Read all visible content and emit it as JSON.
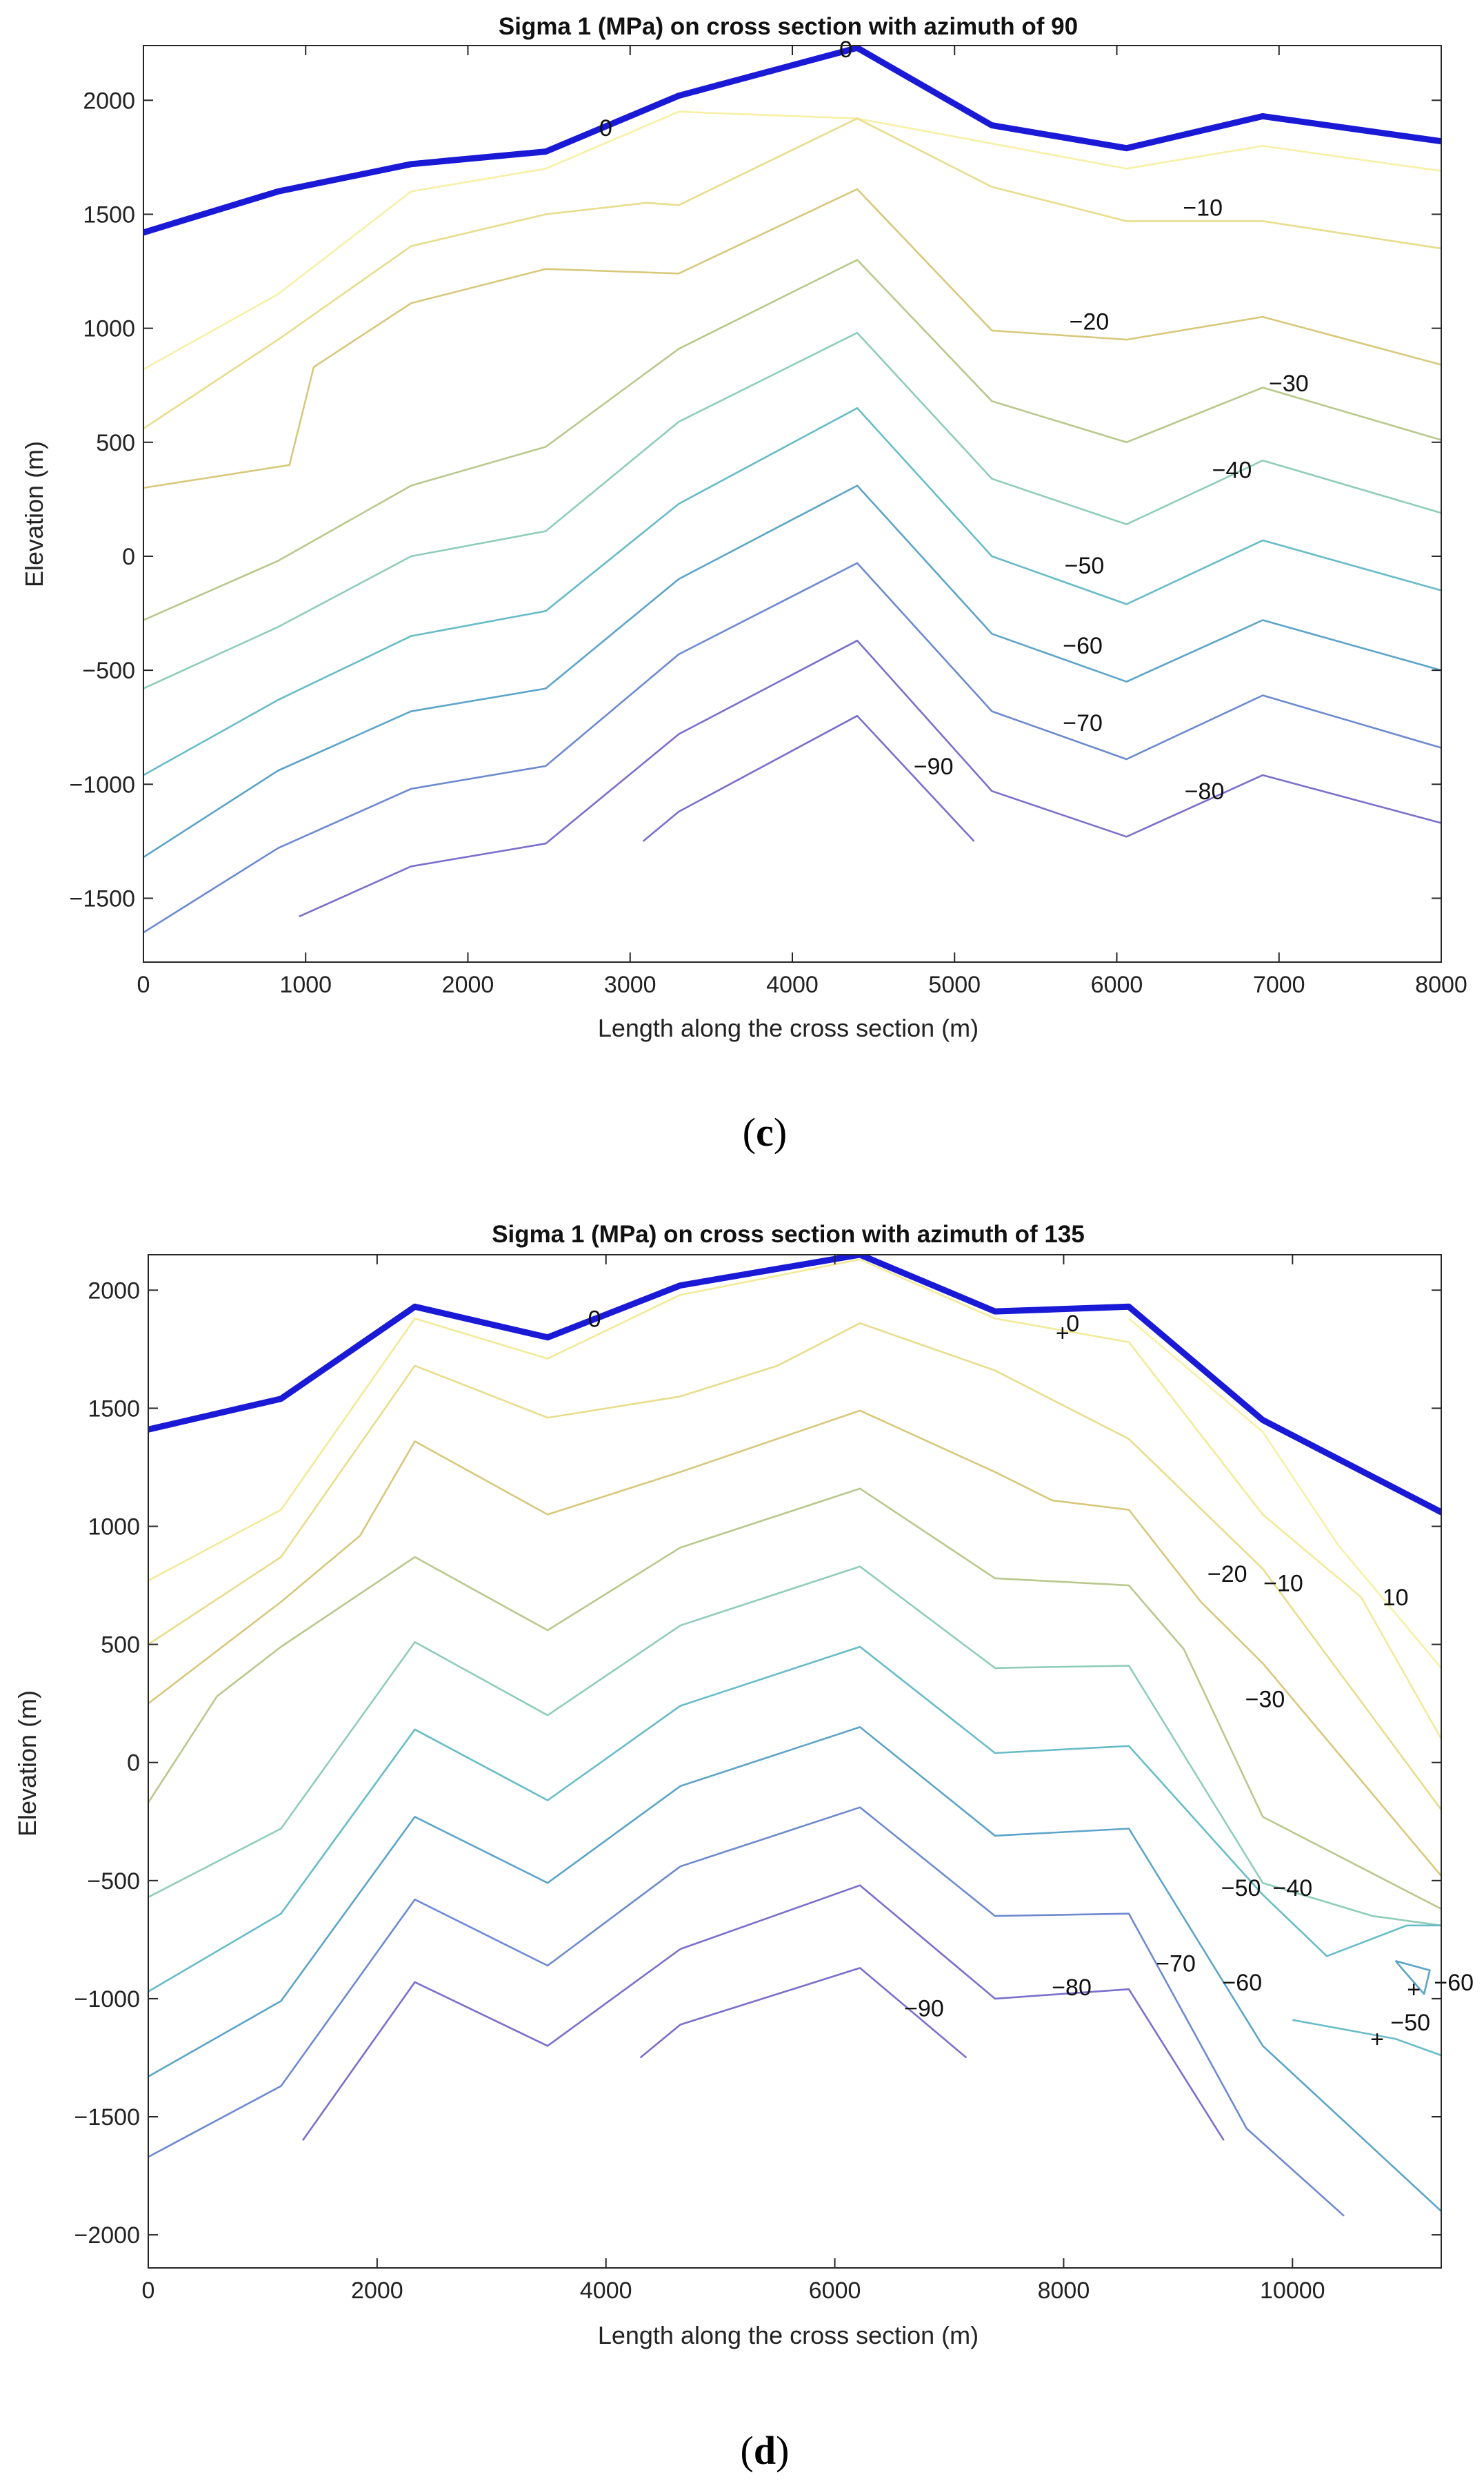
{
  "chart_data": [
    {
      "type": "contour",
      "panel": "c",
      "caption": "(c)",
      "caption_inner": "c",
      "title": "Sigma 1 (MPa) on cross section with azimuth of 90",
      "xlabel": "Length along the cross section (m)",
      "ylabel": "Elevation (m)",
      "xlim": [
        0,
        8000
      ],
      "ylim": [
        -1780,
        2240
      ],
      "xticks": [
        0,
        1000,
        2000,
        3000,
        4000,
        5000,
        6000,
        7000,
        8000
      ],
      "yticks": [
        -1500,
        -1000,
        -500,
        0,
        500,
        1000,
        1500,
        2000
      ],
      "surface": {
        "name": "Topographic surface",
        "color": "#1a1ad6",
        "x": [
          0,
          830,
          1650,
          2480,
          3300,
          4400,
          5230,
          6060,
          6900,
          8000
        ],
        "y": [
          1420,
          1600,
          1720,
          1775,
          2020,
          2230,
          1890,
          1790,
          1930,
          1820
        ]
      },
      "contours": [
        {
          "level": -10,
          "label": "−10",
          "color": "#f7f0a6",
          "x": [
            0,
            830,
            1650,
            2480,
            3300,
            4400,
            5230,
            6060,
            6900,
            8000
          ],
          "y": [
            820,
            1150,
            1600,
            1700,
            1950,
            1920,
            1810,
            1700,
            1800,
            1690
          ]
        },
        {
          "level": -20,
          "label": "−20",
          "color": "#e8dd8c",
          "x": [
            0,
            830,
            1650,
            2480,
            3100,
            3300,
            4400,
            5230,
            6060,
            6900,
            8000
          ],
          "y": [
            560,
            950,
            1360,
            1500,
            1550,
            1540,
            1920,
            1620,
            1470,
            1470,
            1350
          ]
        },
        {
          "level": -30,
          "label": "−30",
          "color": "#d8c87c",
          "x": [
            0,
            900,
            1050,
            1650,
            2480,
            3300,
            4400,
            5230,
            6060,
            6900,
            8000
          ],
          "y": [
            300,
            400,
            830,
            1110,
            1260,
            1240,
            1610,
            990,
            950,
            1050,
            840
          ]
        },
        {
          "level": -40,
          "label": "−40",
          "color": "#b9c88c",
          "x": [
            0,
            830,
            1650,
            2480,
            3300,
            4400,
            5230,
            6060,
            6900,
            8000
          ],
          "y": [
            -280,
            -20,
            310,
            480,
            910,
            1300,
            680,
            500,
            740,
            510
          ]
        },
        {
          "level": -50,
          "label": "−50",
          "color": "#8fcdb9",
          "x": [
            0,
            830,
            1650,
            2480,
            3300,
            4400,
            5230,
            6060,
            6900,
            8000
          ],
          "y": [
            -580,
            -310,
            0,
            110,
            590,
            980,
            340,
            140,
            420,
            190
          ]
        },
        {
          "level": -60,
          "label": "−60",
          "color": "#68bcc8",
          "x": [
            0,
            830,
            1650,
            2480,
            3300,
            4400,
            5230,
            6060,
            6900,
            8000
          ],
          "y": [
            -960,
            -630,
            -350,
            -240,
            230,
            650,
            0,
            -210,
            70,
            -150
          ]
        },
        {
          "level": -70,
          "label": "−70",
          "color": "#5ca4c9",
          "x": [
            0,
            830,
            1650,
            2480,
            3300,
            4400,
            5230,
            6060,
            6900,
            8000
          ],
          "y": [
            -1320,
            -940,
            -680,
            -580,
            -100,
            310,
            -340,
            -550,
            -280,
            -500
          ]
        },
        {
          "level": -80,
          "label": "−80",
          "color": "#6d8ad0",
          "x": [
            0,
            830,
            1650,
            2480,
            3300,
            4400,
            5230,
            6060,
            6900,
            8000
          ],
          "y": [
            -1650,
            -1280,
            -1020,
            -920,
            -430,
            -30,
            -680,
            -890,
            -610,
            -840
          ]
        },
        {
          "level": -90,
          "label": "−90",
          "color": "#7a6fcc",
          "x": [
            960,
            1650,
            2480,
            3300,
            4400,
            5230,
            6060,
            6900,
            8000
          ],
          "y": [
            -1580,
            -1360,
            -1260,
            -780,
            -370,
            -1030,
            -1230,
            -960,
            -1170
          ]
        },
        {
          "level": -100,
          "label": "",
          "color": "#7a6fcc",
          "x": [
            3080,
            3300,
            4400,
            5120
          ],
          "y": [
            -1250,
            -1120,
            -700,
            -1250
          ]
        }
      ],
      "labels": [
        {
          "text": "0",
          "x": 2850,
          "y": 1880
        },
        {
          "text": "0",
          "x": 4330,
          "y": 2225
        },
        {
          "text": "−10",
          "x": 6530,
          "y": 1530
        },
        {
          "text": "−20",
          "x": 5830,
          "y": 1030
        },
        {
          "text": "−30",
          "x": 7060,
          "y": 760
        },
        {
          "text": "−40",
          "x": 6710,
          "y": 380
        },
        {
          "text": "−50",
          "x": 5800,
          "y": -40
        },
        {
          "text": "−60",
          "x": 5790,
          "y": -390
        },
        {
          "text": "−70",
          "x": 5790,
          "y": -730
        },
        {
          "text": "−80",
          "x": 6540,
          "y": -1030
        },
        {
          "text": "−90",
          "x": 4870,
          "y": -920
        }
      ]
    },
    {
      "type": "contour",
      "panel": "d",
      "caption": "(d)",
      "caption_inner": "d",
      "title": "Sigma 1 (MPa) on cross section with azimuth of 135",
      "xlabel": "Length along the cross section (m)",
      "ylabel": "Elevation (m)",
      "xlim": [
        0,
        11300
      ],
      "ylim": [
        -2140,
        2150
      ],
      "xticks": [
        0,
        2000,
        4000,
        6000,
        8000,
        10000
      ],
      "yticks": [
        -2000,
        -1500,
        -1000,
        -500,
        0,
        500,
        1000,
        1500,
        2000
      ],
      "surface": {
        "name": "Topographic surface",
        "color": "#1a1ad6",
        "x": [
          0,
          1160,
          2330,
          3490,
          4650,
          6220,
          7400,
          8570,
          9740,
          11300
        ],
        "y": [
          1410,
          1540,
          1930,
          1800,
          2020,
          2150,
          1910,
          1930,
          1450,
          1060
        ]
      },
      "contours": [
        {
          "level": 10,
          "label": "10",
          "color": "#f7f0a6",
          "x": [
            8570,
            9740,
            10400,
            11300
          ],
          "y": [
            1880,
            1400,
            920,
            400
          ]
        },
        {
          "level": 0,
          "label": "0",
          "color": "#f2ea98",
          "x": [
            0,
            1160,
            2330,
            3490,
            4650,
            6220,
            7400,
            8570,
            9740,
            10600,
            11300
          ],
          "y": [
            770,
            1070,
            1880,
            1710,
            1980,
            2130,
            1880,
            1780,
            1050,
            700,
            100
          ]
        },
        {
          "level": -10,
          "label": "−10",
          "color": "#e8dd8c",
          "x": [
            0,
            1160,
            2330,
            3490,
            4650,
            5500,
            6220,
            7400,
            8570,
            9740,
            11300
          ],
          "y": [
            500,
            870,
            1680,
            1460,
            1550,
            1680,
            1860,
            1660,
            1370,
            820,
            -200
          ]
        },
        {
          "level": -20,
          "label": "−20",
          "color": "#d8c87c",
          "x": [
            0,
            1160,
            1850,
            2330,
            3490,
            4650,
            6220,
            7400,
            7900,
            8570,
            9200,
            9740,
            11300
          ],
          "y": [
            250,
            680,
            960,
            1360,
            1050,
            1230,
            1490,
            1230,
            1110,
            1070,
            680,
            420,
            -480
          ]
        },
        {
          "level": -30,
          "label": "−30",
          "color": "#b9c88c",
          "x": [
            0,
            600,
            1160,
            2330,
            3490,
            4650,
            6220,
            7400,
            8570,
            9050,
            9740,
            11300
          ],
          "y": [
            -170,
            280,
            490,
            870,
            560,
            910,
            1160,
            780,
            750,
            480,
            -230,
            -620
          ]
        },
        {
          "level": -40,
          "label": "−40",
          "color": "#8fcdb9",
          "x": [
            0,
            1160,
            2330,
            3490,
            4650,
            6220,
            7400,
            8570,
            9740,
            10700,
            11300
          ],
          "y": [
            -570,
            -280,
            510,
            200,
            580,
            830,
            400,
            410,
            -510,
            -650,
            -690
          ]
        },
        {
          "level": -50,
          "label": "−50",
          "color": "#68bcc8",
          "x": [
            0,
            1160,
            2330,
            3490,
            4650,
            6220,
            7400,
            8570,
            9740,
            10300,
            11000,
            11300
          ],
          "y": [
            -970,
            -640,
            140,
            -160,
            240,
            490,
            40,
            70,
            -560,
            -820,
            -690,
            -690
          ]
        },
        {
          "level": -55,
          "label": "",
          "color": "#68bcc8",
          "x": [
            10000,
            10900,
            11300
          ],
          "y": [
            -1090,
            -1170,
            -1240
          ]
        },
        {
          "level": -60,
          "label": "−60",
          "color": "#5ca4c9",
          "x": [
            0,
            1160,
            2330,
            3490,
            4650,
            6220,
            7400,
            8570,
            9740,
            11300
          ],
          "y": [
            -1330,
            -1010,
            -230,
            -510,
            -100,
            150,
            -310,
            -280,
            -1200,
            -1900
          ]
        },
        {
          "level": -65,
          "label": "",
          "color": "#5ca4c9",
          "x": [
            10900,
            11200,
            11150,
            10900
          ],
          "y": [
            -840,
            -880,
            -980,
            -840
          ]
        },
        {
          "level": -70,
          "label": "−70",
          "color": "#6d8ad0",
          "x": [
            0,
            1160,
            2330,
            3490,
            4650,
            6220,
            7400,
            8570,
            9600,
            10450
          ],
          "y": [
            -1670,
            -1370,
            -580,
            -860,
            -440,
            -190,
            -650,
            -640,
            -1550,
            -1920
          ]
        },
        {
          "level": -80,
          "label": "−80",
          "color": "#7a6fcc",
          "x": [
            1350,
            2330,
            3490,
            4650,
            6220,
            7400,
            8570,
            9400
          ],
          "y": [
            -1600,
            -930,
            -1200,
            -790,
            -520,
            -1000,
            -960,
            -1600
          ]
        },
        {
          "level": -90,
          "label": "−90",
          "color": "#7a6fcc",
          "x": [
            4300,
            4650,
            6220,
            7150
          ],
          "y": [
            -1250,
            -1110,
            -870,
            -1250
          ]
        }
      ],
      "labels": [
        {
          "text": "0",
          "x": 3900,
          "y": 1880
        },
        {
          "text": "0",
          "x": 8080,
          "y": 1860
        },
        {
          "text": "10",
          "x": 10900,
          "y": 700
        },
        {
          "text": "−10",
          "x": 9920,
          "y": 760
        },
        {
          "text": "−20",
          "x": 9430,
          "y": 800
        },
        {
          "text": "−30",
          "x": 9760,
          "y": 270
        },
        {
          "text": "−40",
          "x": 10000,
          "y": -530
        },
        {
          "text": "−50",
          "x": 9550,
          "y": -530
        },
        {
          "text": "−60",
          "x": 9560,
          "y": -930
        },
        {
          "text": "−70",
          "x": 8980,
          "y": -850
        },
        {
          "text": "−80",
          "x": 8070,
          "y": -950
        },
        {
          "text": "−90",
          "x": 6780,
          "y": -1040
        },
        {
          "text": "−60",
          "x": 11410,
          "y": -930
        },
        {
          "text": "−50",
          "x": 11030,
          "y": -1100
        }
      ],
      "markers": [
        {
          "symbol": "+",
          "x": 7990,
          "y": 1820
        },
        {
          "symbol": "+",
          "x": 11060,
          "y": -960
        },
        {
          "symbol": "+",
          "x": 10740,
          "y": -1170
        }
      ]
    }
  ]
}
